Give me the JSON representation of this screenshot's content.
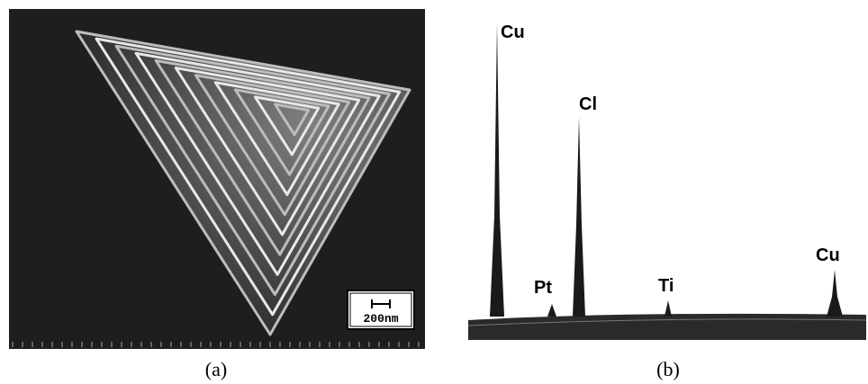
{
  "panel_a": {
    "scale_bar": "200nm",
    "caption": "(a)"
  },
  "panel_b": {
    "peaks": [
      "Cu",
      "Cl",
      "Pt",
      "Ti",
      "Cu"
    ],
    "caption": "(b)"
  }
}
